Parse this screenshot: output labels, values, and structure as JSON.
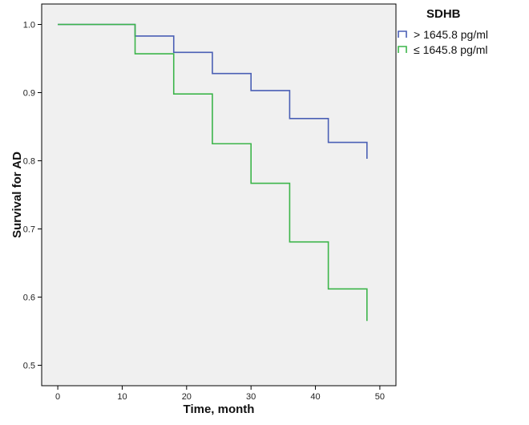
{
  "chart_data": {
    "type": "line",
    "step": true,
    "xlabel": "Time, month",
    "ylabel": "Survival for AD",
    "xlim": [
      -2.5,
      52.5
    ],
    "ylim": [
      0.47,
      1.03
    ],
    "xticks": [
      0,
      10,
      20,
      30,
      40,
      50
    ],
    "yticks": [
      0.5,
      0.6,
      0.7,
      0.8,
      0.9,
      1.0
    ],
    "ytick_labels": [
      "0.5",
      "0.6",
      "0.7",
      "0.8",
      "0.9",
      "1.0"
    ],
    "legend": {
      "title": "SDHB",
      "placement": "right"
    },
    "series": [
      {
        "name": "> 1645.8 pg/ml",
        "color": "#4a5fb5",
        "x": [
          0,
          12,
          18,
          24,
          30,
          36,
          42,
          48
        ],
        "y": [
          1.0,
          0.983,
          0.959,
          0.928,
          0.903,
          0.862,
          0.827,
          0.803
        ]
      },
      {
        "name": "≤ 1645.8 pg/ml",
        "color": "#3cb54a",
        "x": [
          0,
          12,
          18,
          24,
          30,
          36,
          42,
          48
        ],
        "y": [
          1.0,
          0.957,
          0.898,
          0.825,
          0.767,
          0.681,
          0.612,
          0.565
        ]
      }
    ]
  }
}
